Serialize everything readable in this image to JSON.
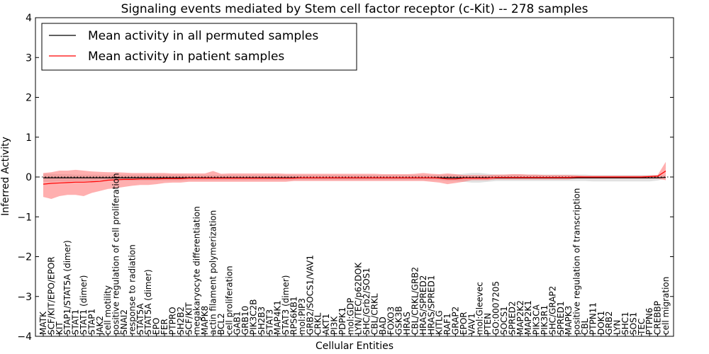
{
  "chart_data": {
    "type": "line",
    "title": "Signaling events mediated by Stem cell factor receptor (c-Kit) -- 278 samples",
    "xlabel": "Cellular Entities",
    "ylabel": "Inferred Activity",
    "ylim": [
      -4,
      4
    ],
    "yticks": [
      "4",
      "3",
      "2",
      "1",
      "0",
      "−1",
      "−2",
      "−3",
      "−4"
    ],
    "legend": {
      "position": "top-left",
      "entries": [
        {
          "label": "Mean activity in all permuted samples",
          "color": "#000000"
        },
        {
          "label": "Mean activity in patient samples",
          "color": "#ff0000"
        }
      ]
    },
    "categories": [
      "MATK",
      "SCF/KIT/EPO/EPOR",
      "KIT",
      "STAP1/STAT5A (dimer)",
      "STAT1",
      "STAT1 (dimer)",
      "STAP1",
      "JAK2",
      "cell motility",
      "positive regulation of cell proliferation",
      "SNAI2",
      "response to radiation",
      "STAT5A",
      "STAT5A (dimer)",
      "EPO",
      "FER",
      "PTPRO",
      "SH2B2",
      "SCF/KIT",
      "megakaryocyte differentiation",
      "MAPK8",
      "actin filament polymerization",
      "BCL2",
      "cell proliferation",
      "GAB1",
      "GRB10",
      "PIK3C2B",
      "SH2B3",
      "STAT3",
      "MAP4K1",
      "STAT3 (dimer)",
      "RPS6KB1",
      "mol:PIP3",
      "GRB2/SOCS1/VAV1",
      "CRKL",
      "AKT1",
      "PI3K",
      "PDPK1",
      "mol:GDP",
      "LYN/TEC/p62DOK",
      "SHC/Grb2/SOS1",
      "CBL/CRKL",
      "BAD",
      "FOXO3",
      "GSK3B",
      "HRAS",
      "CBL/CRKL/GRB2",
      "HRAS/SPRED2",
      "HRAS/SPRED1",
      "KITLG",
      "RAF1",
      "GRAP2",
      "EPOR",
      "VAV1",
      "mol:Gleevec",
      "PTEN",
      "GO:0007205",
      "SOCS1",
      "SPRED2",
      "MAP2K2",
      "MAP2K1",
      "PIK3CA",
      "PIK3R1",
      "SHC/GRAP2",
      "SPRED1",
      "MAPK3",
      "positive regulation of transcription",
      "CBL",
      "PTPN11",
      "DOK1",
      "GRB2",
      "LYN",
      "SHC1",
      "SOS1",
      "TEC",
      "PTPN6",
      "CREBBP",
      "cell migration"
    ],
    "series": [
      {
        "name": "Mean activity in all permuted samples",
        "color": "#000000",
        "values": [
          -0.02,
          -0.02,
          -0.02,
          -0.02,
          -0.02,
          -0.02,
          -0.02,
          -0.02,
          -0.02,
          -0.02,
          -0.02,
          -0.02,
          -0.02,
          -0.02,
          -0.02,
          -0.02,
          -0.02,
          -0.02,
          -0.02,
          -0.02,
          -0.02,
          -0.02,
          -0.02,
          -0.02,
          -0.02,
          -0.02,
          -0.02,
          -0.02,
          -0.02,
          -0.02,
          -0.02,
          -0.02,
          -0.02,
          -0.02,
          -0.02,
          -0.02,
          -0.02,
          -0.02,
          -0.02,
          -0.02,
          -0.02,
          -0.02,
          -0.02,
          -0.02,
          -0.02,
          -0.02,
          -0.02,
          -0.02,
          -0.02,
          -0.02,
          -0.02,
          -0.02,
          -0.02,
          -0.02,
          -0.02,
          -0.02,
          -0.02,
          -0.02,
          -0.02,
          -0.02,
          -0.02,
          -0.02,
          -0.02,
          -0.02,
          -0.02,
          -0.02,
          -0.02,
          -0.02,
          -0.02,
          -0.02,
          -0.02,
          -0.02,
          -0.02,
          -0.02,
          -0.02,
          -0.02,
          -0.02,
          -0.01
        ],
        "lower": [
          -0.12,
          -0.12,
          -0.11,
          -0.11,
          -0.1,
          -0.1,
          -0.1,
          -0.09,
          -0.09,
          -0.09,
          -0.09,
          -0.09,
          -0.09,
          -0.09,
          -0.09,
          -0.09,
          -0.09,
          -0.09,
          -0.08,
          -0.08,
          -0.08,
          -0.08,
          -0.08,
          -0.08,
          -0.08,
          -0.08,
          -0.08,
          -0.08,
          -0.08,
          -0.08,
          -0.08,
          -0.08,
          -0.08,
          -0.08,
          -0.08,
          -0.08,
          -0.08,
          -0.08,
          -0.08,
          -0.08,
          -0.08,
          -0.08,
          -0.08,
          -0.08,
          -0.08,
          -0.08,
          -0.08,
          -0.08,
          -0.08,
          -0.08,
          -0.1,
          -0.1,
          -0.12,
          -0.14,
          -0.14,
          -0.12,
          -0.1,
          -0.1,
          -0.1,
          -0.1,
          -0.1,
          -0.1,
          -0.1,
          -0.1,
          -0.1,
          -0.1,
          -0.1,
          -0.1,
          -0.11,
          -0.11,
          -0.11,
          -0.11,
          -0.11,
          -0.11,
          -0.11,
          -0.11,
          -0.09,
          -0.04
        ],
        "upper": [
          0.08,
          0.08,
          0.07,
          0.07,
          0.06,
          0.06,
          0.06,
          0.06,
          0.06,
          0.06,
          0.06,
          0.06,
          0.06,
          0.06,
          0.06,
          0.06,
          0.06,
          0.06,
          0.05,
          0.05,
          0.05,
          0.05,
          0.05,
          0.05,
          0.05,
          0.05,
          0.05,
          0.05,
          0.05,
          0.05,
          0.05,
          0.05,
          0.05,
          0.05,
          0.05,
          0.05,
          0.05,
          0.05,
          0.05,
          0.05,
          0.05,
          0.05,
          0.05,
          0.05,
          0.05,
          0.05,
          0.05,
          0.05,
          0.05,
          0.05,
          0.06,
          0.06,
          0.08,
          0.1,
          0.1,
          0.08,
          0.06,
          0.06,
          0.06,
          0.06,
          0.06,
          0.06,
          0.06,
          0.06,
          0.06,
          0.06,
          0.06,
          0.06,
          0.05,
          0.05,
          0.05,
          0.05,
          0.05,
          0.05,
          0.05,
          0.05,
          0.05,
          0.04
        ]
      },
      {
        "name": "Mean activity in patient samples",
        "color": "#ff0000",
        "values": [
          -0.18,
          -0.16,
          -0.15,
          -0.14,
          -0.13,
          -0.13,
          -0.12,
          -0.11,
          -0.08,
          -0.07,
          -0.06,
          -0.06,
          -0.05,
          -0.05,
          -0.05,
          -0.04,
          -0.04,
          -0.04,
          -0.03,
          -0.03,
          -0.03,
          -0.03,
          -0.03,
          -0.03,
          -0.03,
          -0.03,
          -0.03,
          -0.03,
          -0.03,
          -0.03,
          -0.03,
          -0.03,
          -0.02,
          -0.02,
          -0.02,
          -0.02,
          -0.02,
          -0.02,
          -0.02,
          -0.02,
          -0.02,
          -0.02,
          -0.02,
          -0.02,
          -0.02,
          -0.02,
          -0.02,
          -0.02,
          -0.02,
          -0.03,
          -0.05,
          -0.05,
          -0.03,
          -0.03,
          -0.03,
          -0.03,
          -0.01,
          -0.01,
          -0.01,
          -0.01,
          -0.01,
          -0.01,
          -0.01,
          -0.01,
          -0.01,
          -0.01,
          0.0,
          0.0,
          0.0,
          0.0,
          0.0,
          0.0,
          0.0,
          0.0,
          0.0,
          0.01,
          0.02,
          0.15
        ],
        "lower": [
          -0.5,
          -0.55,
          -0.48,
          -0.45,
          -0.45,
          -0.48,
          -0.4,
          -0.35,
          -0.3,
          -0.28,
          -0.25,
          -0.22,
          -0.2,
          -0.2,
          -0.18,
          -0.15,
          -0.14,
          -0.14,
          -0.12,
          -0.12,
          -0.12,
          -0.12,
          -0.12,
          -0.12,
          -0.12,
          -0.12,
          -0.12,
          -0.12,
          -0.12,
          -0.12,
          -0.12,
          -0.1,
          -0.1,
          -0.1,
          -0.1,
          -0.1,
          -0.1,
          -0.1,
          -0.1,
          -0.1,
          -0.1,
          -0.1,
          -0.1,
          -0.1,
          -0.1,
          -0.1,
          -0.1,
          -0.1,
          -0.12,
          -0.14,
          -0.18,
          -0.15,
          -0.12,
          -0.08,
          -0.08,
          -0.08,
          -0.06,
          -0.06,
          -0.06,
          -0.06,
          -0.06,
          -0.06,
          -0.06,
          -0.06,
          -0.06,
          -0.06,
          -0.04,
          -0.04,
          -0.04,
          -0.04,
          -0.04,
          -0.04,
          -0.04,
          -0.04,
          -0.04,
          -0.04,
          -0.04,
          -0.08
        ],
        "upper": [
          0.1,
          0.12,
          0.16,
          0.16,
          0.18,
          0.16,
          0.14,
          0.13,
          0.12,
          0.12,
          0.11,
          0.1,
          0.1,
          0.1,
          0.1,
          0.1,
          0.09,
          0.09,
          0.09,
          0.09,
          0.09,
          0.15,
          0.08,
          0.09,
          0.09,
          0.09,
          0.09,
          0.09,
          0.09,
          0.09,
          0.08,
          0.08,
          0.08,
          0.08,
          0.08,
          0.08,
          0.08,
          0.08,
          0.08,
          0.08,
          0.08,
          0.08,
          0.07,
          0.07,
          0.07,
          0.07,
          0.08,
          0.1,
          0.08,
          0.07,
          0.09,
          0.07,
          0.05,
          0.05,
          0.05,
          0.05,
          0.06,
          0.06,
          0.07,
          0.07,
          0.06,
          0.06,
          0.05,
          0.05,
          0.05,
          0.05,
          0.04,
          0.03,
          0.03,
          0.03,
          0.03,
          0.03,
          0.03,
          0.03,
          0.03,
          0.04,
          0.05,
          0.38
        ]
      }
    ]
  }
}
